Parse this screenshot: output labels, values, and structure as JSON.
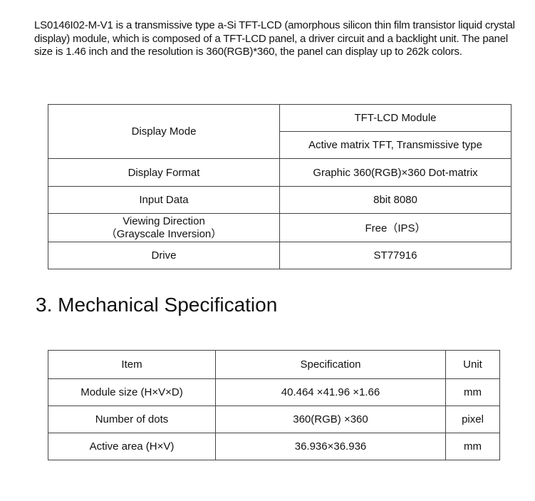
{
  "intro": "LS0146I02-M-V1 is a transmissive type a-Si TFT-LCD (amorphous silicon thin film transistor liquid crystal display) module, which is composed of a TFT-LCD panel, a driver circuit and a backlight unit. The panel size is 1.46 inch and the resolution is 360(RGB)*360, the panel can display up to 262k colors.",
  "general_table": {
    "display_mode_label": "Display Mode",
    "display_mode_values": [
      "TFT-LCD Module",
      "Active matrix TFT, Transmissive  type"
    ],
    "rows": [
      {
        "label": "Display Format",
        "value": "Graphic 360(RGB)×360 Dot-matrix"
      },
      {
        "label": "Input Data",
        "value": "8bit 8080"
      },
      {
        "label": "Viewing Direction",
        "label2": "（Grayscale Inversion）",
        "value": "Free（IPS）"
      },
      {
        "label": "Drive",
        "value": "ST77916"
      }
    ]
  },
  "section_heading": "3. Mechanical Specification",
  "mech_table": {
    "headers": [
      "Item",
      "Specification",
      "Unit"
    ],
    "rows": [
      [
        "Module size (H×V×D)",
        "40.464 ×41.96 ×1.66",
        "mm"
      ],
      [
        "Number of dots",
        "360(RGB) ×360",
        "pixel"
      ],
      [
        "Active area (H×V)",
        "36.936×36.936",
        "mm"
      ]
    ]
  }
}
